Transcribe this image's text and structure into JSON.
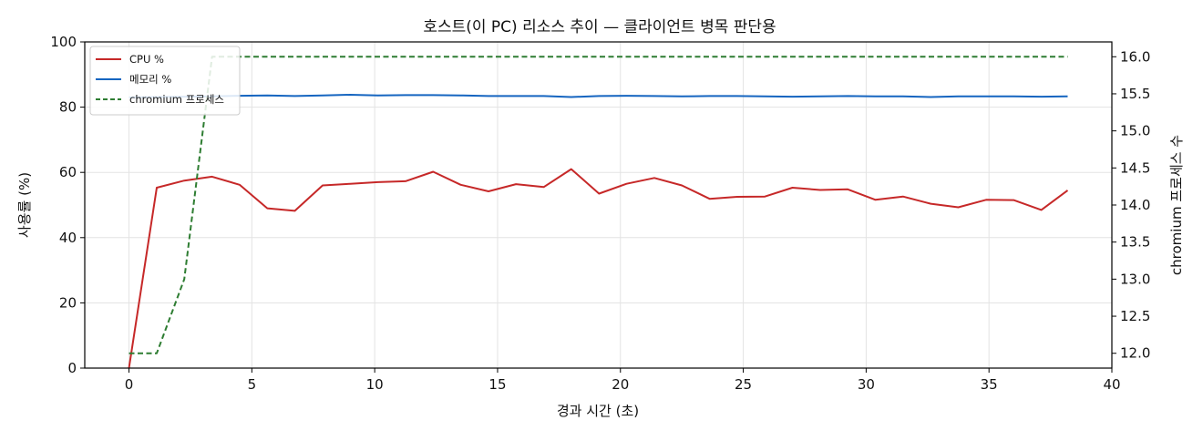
{
  "chart_data": {
    "type": "line",
    "title": "호스트(이 PC) 리소스 추이 — 클라이언트 병목 판단용",
    "xlabel": "경과 시간 (초)",
    "ylabel": "사용률 (%)",
    "y2label": "chromium 프로세스 수",
    "xlim": [
      -1.8,
      40
    ],
    "ylim": [
      0,
      100
    ],
    "y2lim": [
      11.8,
      16.2
    ],
    "xticks": [
      "0",
      "5",
      "10",
      "15",
      "20",
      "25",
      "30",
      "35",
      "40"
    ],
    "yticks": [
      "0",
      "20",
      "40",
      "60",
      "80",
      "100"
    ],
    "y2ticks": [
      "12.0",
      "12.5",
      "13.0",
      "13.5",
      "14.0",
      "14.5",
      "15.0",
      "15.5",
      "16.0"
    ],
    "grid": true,
    "legend_position": "top-left",
    "x": [
      0,
      1.1,
      2.2,
      3.3,
      4.4,
      5.5,
      6.6,
      7.7,
      8.8,
      9.9,
      11.0,
      12.1,
      13.2,
      14.3,
      15.4,
      16.5,
      17.6,
      18.7,
      19.8,
      20.9,
      22.0,
      23.1,
      24.2,
      25.3,
      26.4,
      27.5,
      28.6,
      29.7,
      30.8,
      31.9,
      33.0,
      34.1,
      35.2,
      36.3,
      37.4
    ],
    "x_actual": [
      0.0,
      1.13,
      2.25,
      3.38,
      4.5,
      5.63,
      6.75,
      7.88,
      9.0,
      10.13,
      11.25,
      12.38,
      13.5,
      14.63,
      15.75,
      16.88,
      18.0,
      19.13,
      20.25,
      21.38,
      22.5,
      23.63,
      24.75,
      25.88,
      27.0,
      28.13,
      29.25,
      30.38,
      31.5,
      32.63,
      33.75,
      34.88,
      36.0,
      37.13,
      38.2
    ],
    "series": [
      {
        "name": "CPU %",
        "color": "#c62828",
        "style": "solid",
        "axis": "left",
        "values": [
          0,
          55.3,
          57.5,
          58.7,
          56.2,
          49.0,
          48.2,
          56.0,
          56.5,
          57.0,
          57.3,
          60.2,
          56.2,
          54.2,
          56.4,
          55.5,
          61.0,
          53.5,
          56.5,
          58.3,
          56.0,
          51.9,
          52.5,
          52.6,
          55.3,
          54.6,
          54.8,
          51.6,
          52.6,
          50.4,
          49.3,
          51.6,
          51.5,
          48.5,
          54.5
        ]
      },
      {
        "name": "메모리 %",
        "color": "#1565c0",
        "style": "solid",
        "axis": "left",
        "values": [
          83.0,
          83.1,
          83.2,
          83.3,
          83.5,
          83.6,
          83.4,
          83.6,
          83.8,
          83.6,
          83.7,
          83.7,
          83.6,
          83.4,
          83.4,
          83.4,
          83.1,
          83.4,
          83.5,
          83.4,
          83.3,
          83.4,
          83.4,
          83.3,
          83.2,
          83.3,
          83.4,
          83.3,
          83.3,
          83.1,
          83.3,
          83.3,
          83.3,
          83.2,
          83.3
        ]
      },
      {
        "name": "chromium 프로세스",
        "color": "#2e7d32",
        "style": "dashed",
        "axis": "right",
        "values": [
          12,
          12,
          13,
          16,
          16,
          16,
          16,
          16,
          16,
          16,
          16,
          16,
          16,
          16,
          16,
          16,
          16,
          16,
          16,
          16,
          16,
          16,
          16,
          16,
          16,
          16,
          16,
          16,
          16,
          16,
          16,
          16,
          16,
          16,
          16
        ]
      }
    ]
  }
}
